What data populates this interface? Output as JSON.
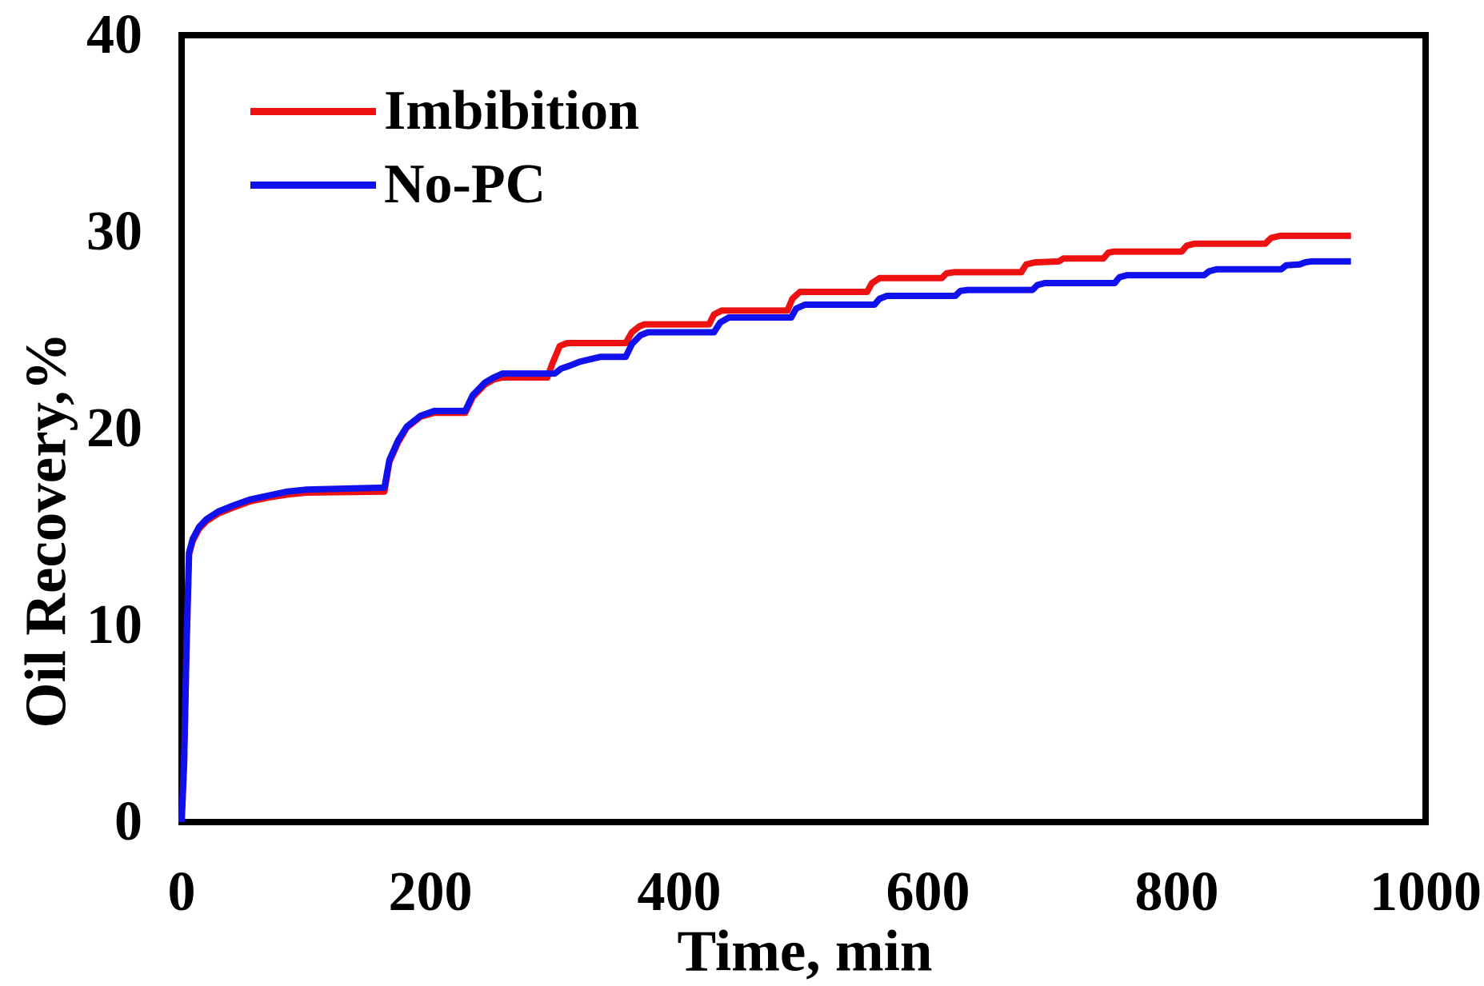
{
  "axes": {
    "x_title": "Time, min",
    "y_title": "Oil Recovery,%"
  },
  "legend": {
    "items": [
      {
        "label": "Imbibition",
        "color": "#ee1111"
      },
      {
        "label": "No-PC",
        "color": "#1111ee"
      }
    ]
  },
  "chart_data": {
    "type": "line",
    "title": "",
    "xlabel": "Time, min",
    "ylabel": "Oil Recovery,%",
    "xlim": [
      0,
      1000
    ],
    "ylim": [
      0,
      40
    ],
    "x_ticks": [
      0,
      200,
      400,
      600,
      800,
      1000
    ],
    "y_ticks": [
      0,
      10,
      20,
      30,
      40
    ],
    "grid": false,
    "legend_position": "top-left-inside",
    "frame_color": "#000000",
    "series": [
      {
        "name": "Imbibition",
        "color": "#ee1111",
        "points": [
          [
            0,
            0
          ],
          [
            2,
            3
          ],
          [
            4,
            9
          ],
          [
            6,
            13.6
          ],
          [
            9,
            14.3
          ],
          [
            14,
            14.9
          ],
          [
            20,
            15.3
          ],
          [
            30,
            15.7
          ],
          [
            42,
            16.0
          ],
          [
            55,
            16.3
          ],
          [
            70,
            16.5
          ],
          [
            85,
            16.65
          ],
          [
            100,
            16.75
          ],
          [
            163,
            16.8
          ],
          [
            167,
            18.3
          ],
          [
            174,
            19.3
          ],
          [
            181,
            20.05
          ],
          [
            192,
            20.6
          ],
          [
            203,
            20.8
          ],
          [
            228,
            20.8
          ],
          [
            234,
            21.6
          ],
          [
            244,
            22.25
          ],
          [
            251,
            22.5
          ],
          [
            258,
            22.6
          ],
          [
            294,
            22.6
          ],
          [
            298,
            23.3
          ],
          [
            304,
            24.2
          ],
          [
            310,
            24.35
          ],
          [
            357,
            24.35
          ],
          [
            362,
            24.9
          ],
          [
            368,
            25.2
          ],
          [
            372,
            25.3
          ],
          [
            424,
            25.3
          ],
          [
            428,
            25.8
          ],
          [
            434,
            26.0
          ],
          [
            487,
            26.0
          ],
          [
            491,
            26.6
          ],
          [
            497,
            26.95
          ],
          [
            551,
            26.95
          ],
          [
            555,
            27.4
          ],
          [
            561,
            27.65
          ],
          [
            611,
            27.65
          ],
          [
            615,
            27.9
          ],
          [
            621,
            27.95
          ],
          [
            675,
            27.95
          ],
          [
            679,
            28.35
          ],
          [
            686,
            28.45
          ],
          [
            705,
            28.5
          ],
          [
            709,
            28.65
          ],
          [
            741,
            28.65
          ],
          [
            745,
            28.95
          ],
          [
            750,
            29.0
          ],
          [
            804,
            29.0
          ],
          [
            808,
            29.3
          ],
          [
            814,
            29.4
          ],
          [
            871,
            29.4
          ],
          [
            876,
            29.7
          ],
          [
            883,
            29.8
          ],
          [
            940,
            29.8
          ]
        ]
      },
      {
        "name": "No-PC",
        "color": "#1111ee",
        "points": [
          [
            0,
            0
          ],
          [
            2,
            3
          ],
          [
            4,
            9
          ],
          [
            6,
            13.7
          ],
          [
            9,
            14.4
          ],
          [
            14,
            15.0
          ],
          [
            20,
            15.4
          ],
          [
            30,
            15.8
          ],
          [
            42,
            16.1
          ],
          [
            55,
            16.4
          ],
          [
            70,
            16.6
          ],
          [
            85,
            16.8
          ],
          [
            100,
            16.9
          ],
          [
            163,
            17.0
          ],
          [
            167,
            18.4
          ],
          [
            174,
            19.4
          ],
          [
            181,
            20.1
          ],
          [
            192,
            20.65
          ],
          [
            203,
            20.9
          ],
          [
            228,
            20.9
          ],
          [
            234,
            21.7
          ],
          [
            244,
            22.35
          ],
          [
            251,
            22.6
          ],
          [
            258,
            22.8
          ],
          [
            300,
            22.8
          ],
          [
            305,
            23.05
          ],
          [
            312,
            23.2
          ],
          [
            320,
            23.4
          ],
          [
            330,
            23.55
          ],
          [
            337,
            23.65
          ],
          [
            357,
            23.65
          ],
          [
            362,
            24.3
          ],
          [
            369,
            24.75
          ],
          [
            375,
            24.9
          ],
          [
            428,
            24.9
          ],
          [
            433,
            25.4
          ],
          [
            440,
            25.65
          ],
          [
            490,
            25.65
          ],
          [
            494,
            26.1
          ],
          [
            501,
            26.3
          ],
          [
            557,
            26.3
          ],
          [
            561,
            26.6
          ],
          [
            567,
            26.75
          ],
          [
            622,
            26.75
          ],
          [
            626,
            27.0
          ],
          [
            632,
            27.05
          ],
          [
            684,
            27.05
          ],
          [
            688,
            27.3
          ],
          [
            694,
            27.4
          ],
          [
            750,
            27.4
          ],
          [
            754,
            27.7
          ],
          [
            760,
            27.8
          ],
          [
            822,
            27.8
          ],
          [
            826,
            28.0
          ],
          [
            832,
            28.1
          ],
          [
            884,
            28.1
          ],
          [
            888,
            28.3
          ],
          [
            899,
            28.35
          ],
          [
            903,
            28.45
          ],
          [
            908,
            28.5
          ],
          [
            940,
            28.5
          ]
        ]
      }
    ]
  }
}
